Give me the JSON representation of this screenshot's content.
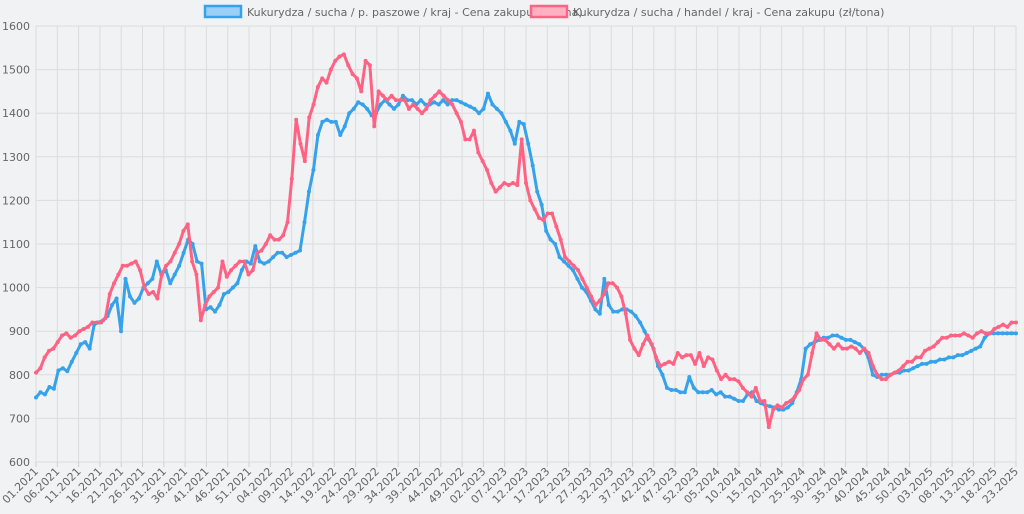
{
  "chart_data": {
    "type": "line",
    "ylim": [
      600,
      1600
    ],
    "y_ticks": [
      600,
      700,
      800,
      900,
      1000,
      1100,
      1200,
      1300,
      1400,
      1500,
      1600
    ],
    "x_tick_labels": [
      "01.2021",
      "06.2021",
      "11.2021",
      "16.2021",
      "21.2021",
      "26.2021",
      "31.2021",
      "36.2021",
      "41.2021",
      "46.2021",
      "51.2021",
      "04.2022",
      "09.2022",
      "14.2022",
      "19.2022",
      "24.2022",
      "29.2022",
      "34.2022",
      "39.2022",
      "44.2022",
      "49.2022",
      "02.2023",
      "07.2023",
      "12.2023",
      "17.2023",
      "22.2023",
      "27.2023",
      "32.2023",
      "37.2023",
      "42.2023",
      "47.2023",
      "52.2023",
      "05.2024",
      "10.2024",
      "15.2024",
      "20.2024",
      "25.2024",
      "30.2024",
      "35.2024",
      "40.2024",
      "45.2024",
      "50.2024",
      "03.2025",
      "08.2025",
      "13.2025",
      "18.2025",
      "23.2025"
    ],
    "grid": true,
    "legend_position": "top",
    "series": [
      {
        "name": "Kukurydza / sucha / p. paszowe / kraj - Cena zakupu (zł/tona)",
        "color": "#36a2eb",
        "fill": "#9ad0f5",
        "values": [
          748,
          760,
          755,
          772,
          768,
          810,
          815,
          808,
          830,
          850,
          870,
          875,
          860,
          915,
          920,
          925,
          935,
          960,
          975,
          900,
          1020,
          980,
          965,
          975,
          1000,
          1010,
          1020,
          1060,
          1030,
          1040,
          1010,
          1030,
          1050,
          1080,
          1110,
          1100,
          1060,
          1055,
          950,
          955,
          945,
          960,
          985,
          990,
          1000,
          1010,
          1040,
          1060,
          1055,
          1095,
          1060,
          1055,
          1060,
          1070,
          1080,
          1080,
          1070,
          1075,
          1080,
          1085,
          1150,
          1220,
          1270,
          1350,
          1380,
          1385,
          1380,
          1380,
          1350,
          1370,
          1400,
          1410,
          1425,
          1420,
          1410,
          1395,
          1400,
          1420,
          1430,
          1420,
          1410,
          1420,
          1440,
          1430,
          1430,
          1420,
          1430,
          1420,
          1420,
          1425,
          1420,
          1430,
          1420,
          1430,
          1430,
          1425,
          1420,
          1415,
          1410,
          1400,
          1410,
          1445,
          1420,
          1410,
          1400,
          1380,
          1360,
          1330,
          1380,
          1375,
          1330,
          1280,
          1220,
          1190,
          1130,
          1110,
          1100,
          1070,
          1060,
          1050,
          1040,
          1020,
          1000,
          990,
          970,
          950,
          940,
          1020,
          960,
          945,
          945,
          950,
          950,
          945,
          935,
          920,
          900,
          880,
          860,
          820,
          800,
          770,
          765,
          765,
          760,
          760,
          795,
          770,
          760,
          760,
          760,
          765,
          755,
          760,
          750,
          750,
          745,
          740,
          740,
          755,
          760,
          740,
          735,
          730,
          728,
          725,
          720,
          720,
          725,
          735,
          760,
          790,
          860,
          870,
          875,
          880,
          885,
          885,
          890,
          890,
          885,
          880,
          880,
          875,
          870,
          860,
          840,
          800,
          795,
          800,
          800,
          800,
          805,
          805,
          810,
          810,
          815,
          820,
          825,
          825,
          830,
          830,
          835,
          835,
          840,
          840,
          845,
          845,
          850,
          855,
          860,
          865,
          885,
          895,
          895,
          895,
          895,
          895,
          895,
          895
        ]
      },
      {
        "name": "Kukurydza / sucha / handel / kraj - Cena zakupu (zł/tona)",
        "color": "#ff6384",
        "fill": "#ffb1c1",
        "values": [
          805,
          815,
          840,
          855,
          860,
          875,
          890,
          895,
          885,
          890,
          900,
          905,
          910,
          920,
          920,
          920,
          930,
          985,
          1010,
          1030,
          1050,
          1050,
          1055,
          1060,
          1040,
          1000,
          985,
          990,
          975,
          1030,
          1050,
          1060,
          1080,
          1100,
          1130,
          1145,
          1060,
          1030,
          925,
          960,
          980,
          990,
          1000,
          1060,
          1025,
          1040,
          1050,
          1060,
          1060,
          1030,
          1040,
          1080,
          1085,
          1100,
          1120,
          1110,
          1110,
          1120,
          1150,
          1250,
          1385,
          1330,
          1290,
          1390,
          1420,
          1460,
          1480,
          1470,
          1500,
          1520,
          1530,
          1535,
          1510,
          1490,
          1480,
          1450,
          1520,
          1510,
          1370,
          1450,
          1440,
          1430,
          1440,
          1430,
          1430,
          1430,
          1410,
          1420,
          1410,
          1400,
          1410,
          1430,
          1440,
          1450,
          1440,
          1430,
          1420,
          1400,
          1380,
          1340,
          1340,
          1360,
          1310,
          1290,
          1270,
          1240,
          1220,
          1230,
          1240,
          1235,
          1240,
          1235,
          1340,
          1240,
          1200,
          1180,
          1160,
          1155,
          1170,
          1170,
          1140,
          1110,
          1070,
          1060,
          1050,
          1040,
          1020,
          1000,
          980,
          960,
          970,
          985,
          1010,
          1010,
          1000,
          980,
          940,
          880,
          860,
          845,
          870,
          890,
          870,
          840,
          820,
          825,
          830,
          825,
          850,
          840,
          845,
          845,
          825,
          850,
          820,
          840,
          835,
          810,
          790,
          800,
          790,
          790,
          785,
          770,
          760,
          750,
          770,
          740,
          740,
          680,
          720,
          730,
          725,
          735,
          740,
          750,
          765,
          790,
          800,
          850,
          895,
          880,
          880,
          870,
          860,
          870,
          860,
          860,
          865,
          860,
          850,
          860,
          850,
          820,
          800,
          790,
          790,
          800,
          805,
          810,
          820,
          830,
          830,
          840,
          840,
          855,
          860,
          865,
          875,
          885,
          885,
          890,
          890,
          890,
          895,
          890,
          885,
          895,
          900,
          895,
          895,
          905,
          910,
          915,
          910,
          920,
          920
        ]
      }
    ]
  }
}
